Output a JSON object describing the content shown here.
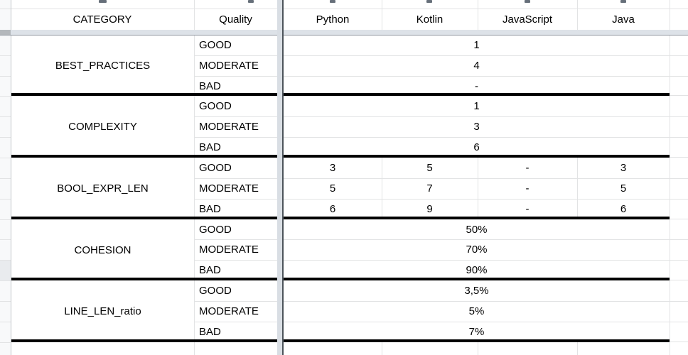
{
  "sheet": {
    "frozen_header": {
      "category_header": "CATEGORY",
      "quality_header": "Quality",
      "languages": [
        "Python",
        "Kotlin",
        "JavaScript",
        "Java"
      ]
    },
    "groups": [
      {
        "category": "BEST_PRACTICES",
        "rows": [
          {
            "quality": "GOOD",
            "merged_value": "1"
          },
          {
            "quality": "MODERATE",
            "merged_value": "4"
          },
          {
            "quality": "BAD",
            "merged_value": "-"
          }
        ]
      },
      {
        "category": "COMPLEXITY",
        "rows": [
          {
            "quality": "GOOD",
            "merged_value": "1"
          },
          {
            "quality": "MODERATE",
            "merged_value": "3"
          },
          {
            "quality": "BAD",
            "merged_value": "6"
          }
        ]
      },
      {
        "category": "BOOL_EXPR_LEN",
        "rows": [
          {
            "quality": "GOOD",
            "cells": [
              "3",
              "5",
              "-",
              "3"
            ]
          },
          {
            "quality": "MODERATE",
            "cells": [
              "5",
              "7",
              "-",
              "5"
            ]
          },
          {
            "quality": "BAD",
            "cells": [
              "6",
              "9",
              "-",
              "6"
            ]
          }
        ]
      },
      {
        "category": "COHESION",
        "rows": [
          {
            "quality": "GOOD",
            "merged_value": "50%"
          },
          {
            "quality": "MODERATE",
            "merged_value": "70%"
          },
          {
            "quality": "BAD",
            "merged_value": "90%"
          }
        ]
      },
      {
        "category": "LINE_LEN_ratio",
        "rows": [
          {
            "quality": "GOOD",
            "merged_value": "3,5%"
          },
          {
            "quality": "MODERATE",
            "merged_value": "5%"
          },
          {
            "quality": "BAD",
            "merged_value": "7%"
          }
        ]
      }
    ],
    "colors": {
      "text": "#000000",
      "black_border": "#000000",
      "gridline": "#e2e3e4",
      "gutter_border": "#c2c6ca",
      "gutter_bg": "#f8f9fa",
      "gutter_highlight": "#e9ebee",
      "frozen_band": "#dde2e8",
      "frozen_band_gutter": "#b4b8bc",
      "frozen_line": "#9097a0",
      "divider_band": "#d9dee4",
      "divider_line": "#4d545b",
      "fragment": "#666f7a"
    }
  }
}
